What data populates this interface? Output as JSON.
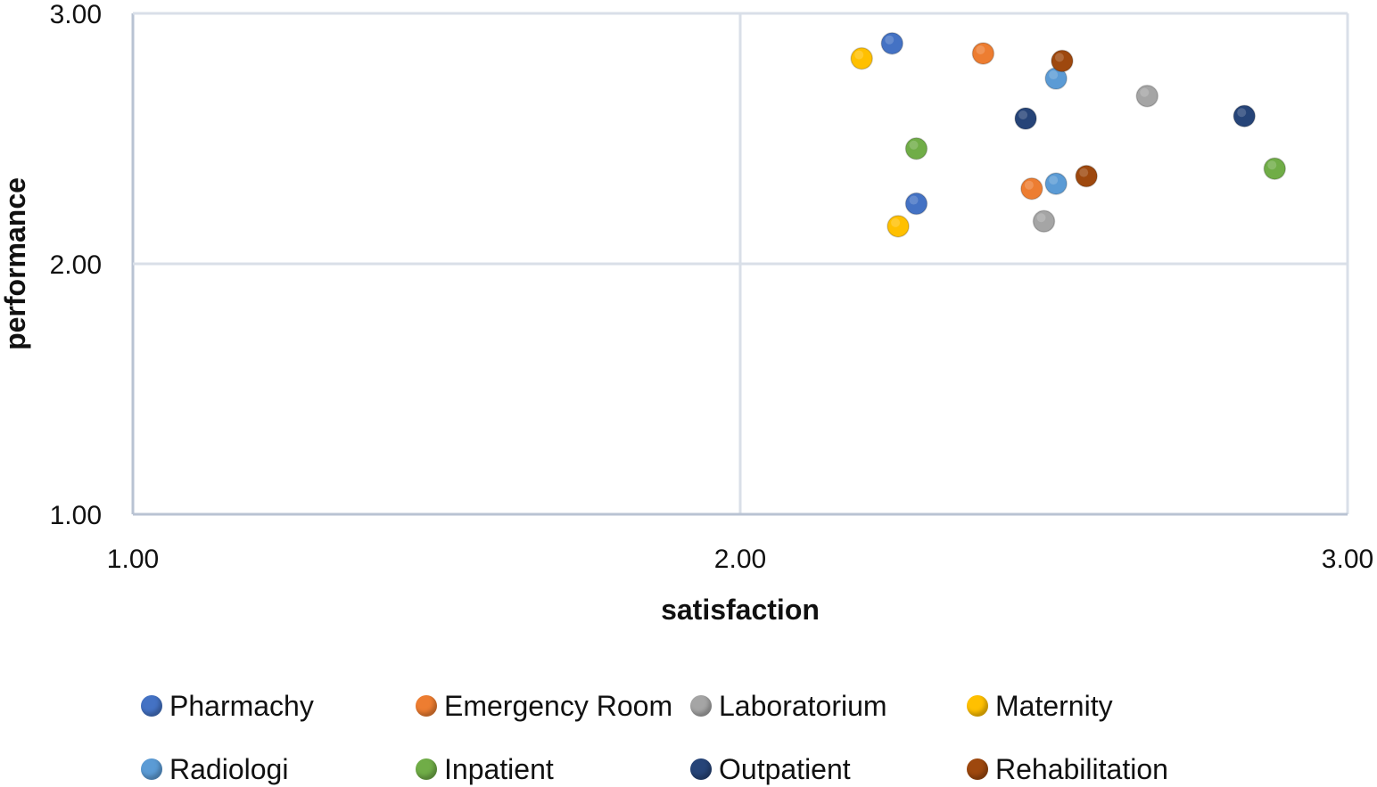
{
  "chart_data": {
    "type": "scatter",
    "xlabel": "satisfaction",
    "ylabel": "performance",
    "xlim": [
      1.0,
      3.0
    ],
    "ylim": [
      1.0,
      3.0
    ],
    "x_ticks": [
      "1.00",
      "2.00",
      "3.00"
    ],
    "y_ticks": [
      "1.00",
      "2.00",
      "3.00"
    ],
    "grid": true,
    "legend_position": "bottom",
    "series": [
      {
        "name": "Pharmachy",
        "color": "#4472C4",
        "points": [
          {
            "x": 2.25,
            "y": 2.88
          },
          {
            "x": 2.29,
            "y": 2.24
          }
        ]
      },
      {
        "name": "Emergency Room",
        "color": "#ED7D31",
        "points": [
          {
            "x": 2.4,
            "y": 2.84
          },
          {
            "x": 2.48,
            "y": 2.3
          }
        ]
      },
      {
        "name": "Laboratorium",
        "color": "#A5A5A5",
        "points": [
          {
            "x": 2.67,
            "y": 2.67
          },
          {
            "x": 2.5,
            "y": 2.17
          }
        ]
      },
      {
        "name": "Maternity",
        "color": "#FFC000",
        "points": [
          {
            "x": 2.2,
            "y": 2.82
          },
          {
            "x": 2.26,
            "y": 2.15
          }
        ]
      },
      {
        "name": "Radiologi",
        "color": "#5B9BD5",
        "points": [
          {
            "x": 2.52,
            "y": 2.74
          },
          {
            "x": 2.52,
            "y": 2.32
          }
        ]
      },
      {
        "name": "Inpatient",
        "color": "#70AD47",
        "points": [
          {
            "x": 2.29,
            "y": 2.46
          },
          {
            "x": 2.88,
            "y": 2.38
          }
        ]
      },
      {
        "name": "Outpatient",
        "color": "#264478",
        "points": [
          {
            "x": 2.47,
            "y": 2.58
          },
          {
            "x": 2.83,
            "y": 2.59
          }
        ]
      },
      {
        "name": "Rehabilitation",
        "color": "#9E480E",
        "points": [
          {
            "x": 2.53,
            "y": 2.81
          },
          {
            "x": 2.57,
            "y": 2.35
          }
        ]
      }
    ]
  }
}
